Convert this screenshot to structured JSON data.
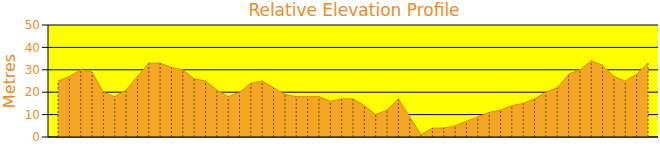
{
  "chart_data": {
    "type": "area",
    "title": "Relative Elevation Profile",
    "y_label": "Metres",
    "categories": [
      null,
      null,
      null,
      null,
      null,
      null,
      null,
      null,
      null,
      null,
      null,
      null,
      null,
      null,
      null,
      null,
      null,
      null,
      null,
      null,
      null,
      null,
      null,
      null,
      null,
      null,
      null,
      null,
      null,
      null,
      null,
      null,
      null,
      null,
      null,
      null,
      null,
      null,
      null,
      null,
      null,
      null,
      null,
      null,
      null,
      null,
      null,
      null,
      null,
      null,
      null,
      null,
      null
    ],
    "values": [
      25,
      27,
      30,
      29,
      20,
      18,
      21,
      27,
      33,
      33,
      31,
      30,
      26,
      25,
      21,
      18,
      20,
      24,
      25,
      22,
      19,
      18,
      18,
      18,
      16,
      17,
      17,
      14,
      10,
      12,
      17,
      9,
      1,
      4,
      4,
      5,
      7,
      9,
      11,
      12,
      14,
      15,
      17,
      20,
      22,
      28,
      30,
      34,
      32,
      27,
      25,
      28,
      33
    ],
    "color": "#f5a623",
    "ylim": [
      0,
      50
    ],
    "yticks": [
      0,
      10,
      20,
      30,
      40,
      50
    ],
    "grid": true,
    "tick_labels": "y"
  }
}
